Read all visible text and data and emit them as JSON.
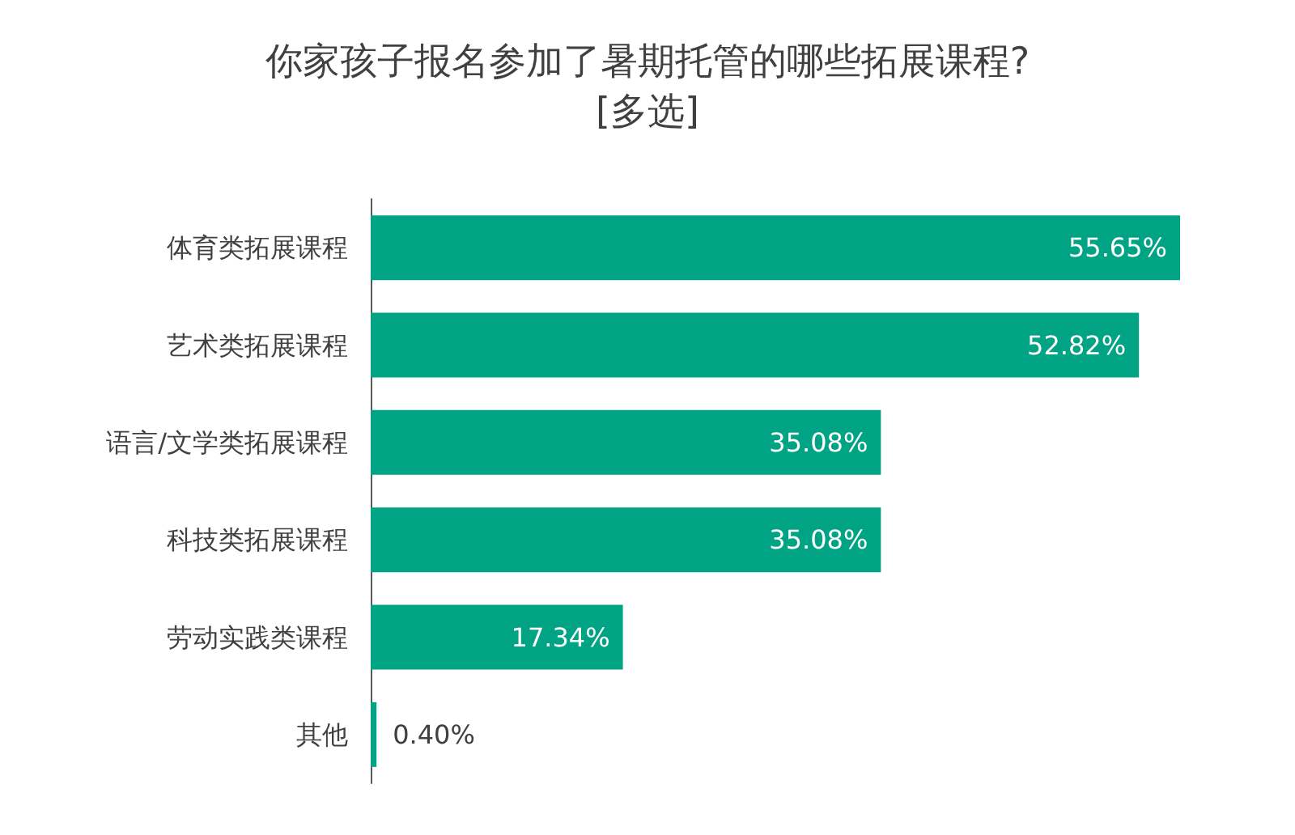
{
  "chart_data": {
    "type": "bar",
    "orientation": "horizontal",
    "title": "你家孩子报名参加了暑期托管的哪些拓展课程?",
    "subtitle": "[多选]",
    "categories": [
      "体育类拓展课程",
      "艺术类拓展课程",
      "语言/文学类拓展课程",
      "科技类拓展课程",
      "劳动实践类课程",
      "其他"
    ],
    "values": [
      55.65,
      52.82,
      35.08,
      35.08,
      17.34,
      0.4
    ],
    "value_labels": [
      "55.65%",
      "52.82%",
      "35.08%",
      "35.08%",
      "17.34%",
      "0.40%"
    ],
    "color": "#00a383"
  }
}
